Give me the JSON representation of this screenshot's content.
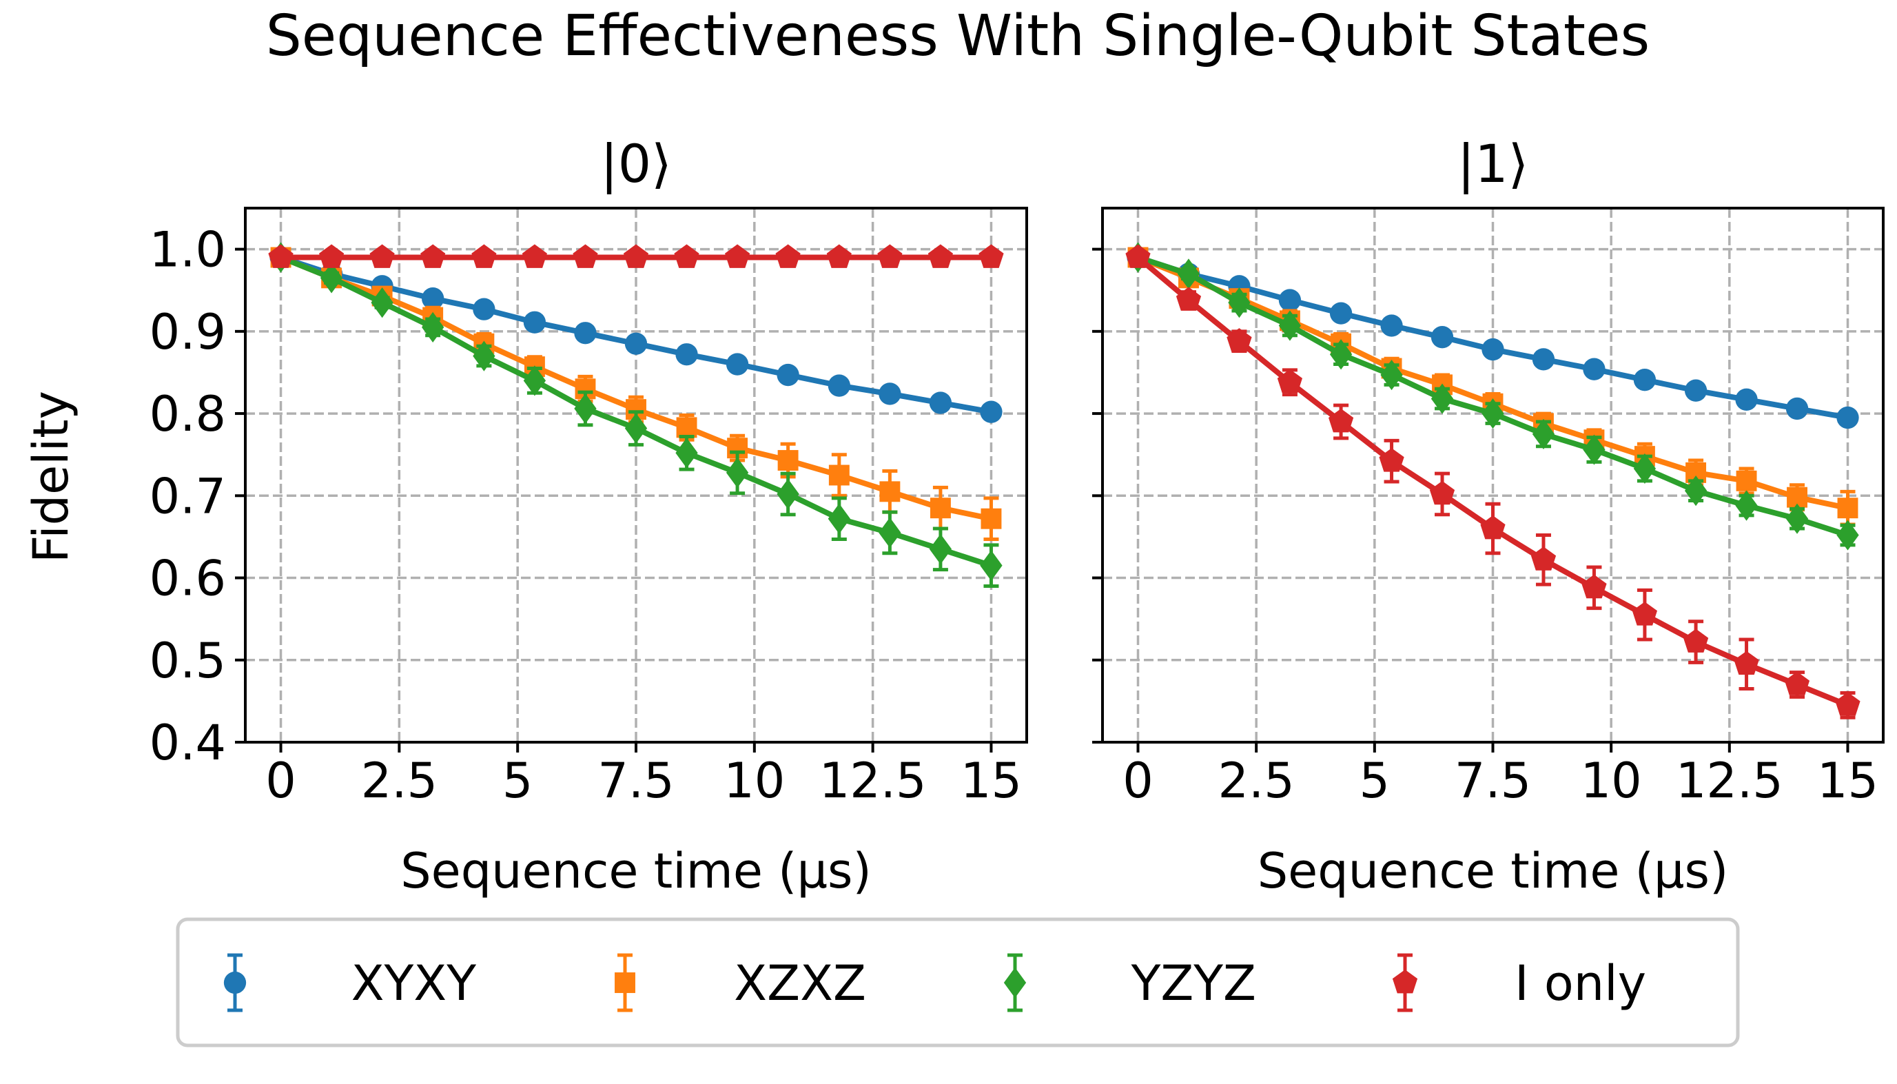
{
  "chart_data": {
    "type": "line",
    "suptitle": "Sequence Effectiveness With Single-Qubit States",
    "ylabel": "Fidelity",
    "xlabel": "Sequence time (µs)",
    "xlim": [
      -0.75,
      15.75
    ],
    "ylim": [
      0.4,
      1.05
    ],
    "x_ticks": [
      0,
      2.5,
      5,
      7.5,
      10,
      12.5,
      15
    ],
    "x_tick_labels": [
      "0",
      "2.5",
      "5",
      "7.5",
      "10",
      "12.5",
      "15"
    ],
    "y_ticks": [
      0.4,
      0.5,
      0.6,
      0.7,
      0.8,
      0.9,
      1.0
    ],
    "y_tick_labels": [
      "0.4",
      "0.5",
      "0.6",
      "0.7",
      "0.8",
      "0.9",
      "1.0"
    ],
    "grid": true,
    "legend_position": "bottom-center",
    "x": [
      0,
      1.07,
      2.14,
      3.21,
      4.29,
      5.36,
      6.43,
      7.5,
      8.57,
      9.64,
      10.71,
      11.79,
      12.86,
      13.93,
      15
    ],
    "legend_series": [
      {
        "name": "XYXY",
        "color": "#1f77b4",
        "marker": "circle"
      },
      {
        "name": "XZXZ",
        "color": "#ff7f0e",
        "marker": "square"
      },
      {
        "name": "YZYZ",
        "color": "#2ca02c",
        "marker": "diamond"
      },
      {
        "name": "I only",
        "color": "#d62728",
        "marker": "pentagon"
      }
    ],
    "panels": [
      {
        "title": "|0⟩",
        "series": [
          {
            "name": "XYXY",
            "values": [
              0.99,
              0.97,
              0.955,
              0.94,
              0.927,
              0.911,
              0.898,
              0.885,
              0.872,
              0.86,
              0.847,
              0.834,
              0.824,
              0.813,
              0.802
            ],
            "errors": [
              0.006,
              0.006,
              0.006,
              0.006,
              0.006,
              0.006,
              0.006,
              0.006,
              0.006,
              0.006,
              0.006,
              0.006,
              0.006,
              0.006,
              0.006
            ]
          },
          {
            "name": "XZXZ",
            "values": [
              0.99,
              0.965,
              0.943,
              0.917,
              0.885,
              0.857,
              0.83,
              0.805,
              0.783,
              0.758,
              0.743,
              0.725,
              0.705,
              0.685,
              0.672
            ],
            "errors": [
              0.008,
              0.008,
              0.01,
              0.012,
              0.012,
              0.012,
              0.015,
              0.015,
              0.015,
              0.015,
              0.02,
              0.025,
              0.025,
              0.025,
              0.025
            ]
          },
          {
            "name": "YZYZ",
            "values": [
              0.99,
              0.965,
              0.935,
              0.905,
              0.87,
              0.84,
              0.806,
              0.782,
              0.752,
              0.728,
              0.702,
              0.672,
              0.655,
              0.635,
              0.615
            ],
            "errors": [
              0.006,
              0.006,
              0.006,
              0.01,
              0.012,
              0.015,
              0.02,
              0.02,
              0.02,
              0.025,
              0.025,
              0.025,
              0.025,
              0.025,
              0.025
            ]
          },
          {
            "name": "I only",
            "values": [
              0.99,
              0.99,
              0.99,
              0.99,
              0.99,
              0.99,
              0.99,
              0.99,
              0.99,
              0.99,
              0.99,
              0.99,
              0.99,
              0.99,
              0.99
            ],
            "errors": [
              0.004,
              0.004,
              0.004,
              0.004,
              0.004,
              0.004,
              0.004,
              0.004,
              0.004,
              0.004,
              0.004,
              0.004,
              0.004,
              0.004,
              0.004
            ]
          }
        ]
      },
      {
        "title": "|1⟩",
        "series": [
          {
            "name": "XYXY",
            "values": [
              0.99,
              0.97,
              0.955,
              0.938,
              0.922,
              0.907,
              0.893,
              0.878,
              0.866,
              0.854,
              0.841,
              0.828,
              0.817,
              0.806,
              0.795
            ],
            "errors": [
              0.006,
              0.006,
              0.006,
              0.006,
              0.006,
              0.006,
              0.006,
              0.006,
              0.006,
              0.006,
              0.006,
              0.006,
              0.006,
              0.006,
              0.006
            ]
          },
          {
            "name": "XZXZ",
            "values": [
              0.99,
              0.965,
              0.94,
              0.913,
              0.885,
              0.855,
              0.835,
              0.812,
              0.788,
              0.768,
              0.748,
              0.728,
              0.718,
              0.698,
              0.685
            ],
            "errors": [
              0.006,
              0.008,
              0.01,
              0.012,
              0.012,
              0.012,
              0.012,
              0.012,
              0.012,
              0.012,
              0.015,
              0.015,
              0.015,
              0.015,
              0.02
            ]
          },
          {
            "name": "YZYZ",
            "values": [
              0.99,
              0.97,
              0.935,
              0.907,
              0.872,
              0.847,
              0.818,
              0.8,
              0.775,
              0.756,
              0.733,
              0.706,
              0.688,
              0.672,
              0.652
            ],
            "errors": [
              0.006,
              0.006,
              0.01,
              0.012,
              0.012,
              0.012,
              0.012,
              0.012,
              0.015,
              0.015,
              0.015,
              0.012,
              0.012,
              0.012,
              0.012
            ]
          },
          {
            "name": "I only",
            "values": [
              0.99,
              0.938,
              0.888,
              0.838,
              0.79,
              0.742,
              0.702,
              0.66,
              0.622,
              0.588,
              0.555,
              0.522,
              0.495,
              0.47,
              0.445
            ],
            "errors": [
              0.006,
              0.01,
              0.012,
              0.015,
              0.02,
              0.025,
              0.025,
              0.03,
              0.03,
              0.025,
              0.03,
              0.025,
              0.03,
              0.015,
              0.015
            ]
          }
        ]
      }
    ]
  }
}
